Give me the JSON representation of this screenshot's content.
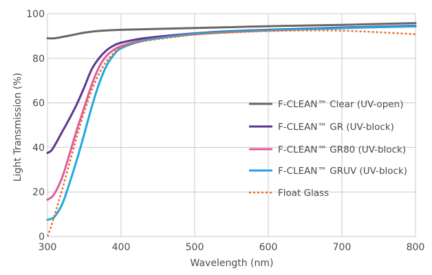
{
  "chart_data": {
    "type": "line",
    "title": "",
    "xlabel": "Wavelength (nm)",
    "ylabel": "Light Transmission (%)",
    "xlim": [
      300,
      800
    ],
    "ylim": [
      0,
      100
    ],
    "xticks": [
      300,
      400,
      500,
      600,
      700,
      800
    ],
    "yticks": [
      0,
      20,
      40,
      60,
      80,
      100
    ],
    "grid": true,
    "legend_position": "right",
    "series": [
      {
        "name": "F-CLEAN™ Clear (UV-open)",
        "color": "#666666",
        "dash": "solid",
        "points": [
          [
            300,
            89
          ],
          [
            310,
            89
          ],
          [
            330,
            90.2
          ],
          [
            350,
            91.5
          ],
          [
            370,
            92.3
          ],
          [
            400,
            92.8
          ],
          [
            450,
            93.2
          ],
          [
            500,
            93.6
          ],
          [
            550,
            94
          ],
          [
            600,
            94.4
          ],
          [
            650,
            94.7
          ],
          [
            700,
            95
          ],
          [
            750,
            95.4
          ],
          [
            800,
            95.8
          ]
        ]
      },
      {
        "name": "F-CLEAN™ GR (UV-block)",
        "color": "#5b3690",
        "dash": "solid",
        "points": [
          [
            300,
            37.5
          ],
          [
            305,
            38.5
          ],
          [
            310,
            41
          ],
          [
            320,
            47
          ],
          [
            330,
            53
          ],
          [
            340,
            59.5
          ],
          [
            350,
            67
          ],
          [
            360,
            75
          ],
          [
            370,
            80
          ],
          [
            380,
            83.5
          ],
          [
            390,
            85.7
          ],
          [
            400,
            87
          ],
          [
            425,
            88.7
          ],
          [
            450,
            89.7
          ],
          [
            500,
            91.2
          ],
          [
            550,
            92.2
          ],
          [
            600,
            92.8
          ],
          [
            650,
            93.3
          ],
          [
            700,
            93.8
          ],
          [
            750,
            94.2
          ],
          [
            800,
            94.6
          ]
        ]
      },
      {
        "name": "F-CLEAN™ GR80 (UV-block)",
        "color": "#e05aa0",
        "dash": "solid",
        "points": [
          [
            300,
            16.5
          ],
          [
            305,
            17.5
          ],
          [
            310,
            19.5
          ],
          [
            320,
            26.5
          ],
          [
            330,
            37
          ],
          [
            340,
            48
          ],
          [
            350,
            58
          ],
          [
            360,
            68
          ],
          [
            370,
            76
          ],
          [
            380,
            81
          ],
          [
            390,
            83.8
          ],
          [
            400,
            85.5
          ],
          [
            425,
            87.8
          ],
          [
            450,
            89
          ],
          [
            500,
            90.8
          ],
          [
            550,
            91.8
          ],
          [
            600,
            92.5
          ],
          [
            650,
            93
          ],
          [
            700,
            93.5
          ],
          [
            750,
            94
          ],
          [
            800,
            94.3
          ]
        ]
      },
      {
        "name": "F-CLEAN™ GRUV (UV-block)",
        "color": "#1ea7e0",
        "dash": "solid",
        "points": [
          [
            300,
            7.5
          ],
          [
            305,
            8
          ],
          [
            310,
            9
          ],
          [
            320,
            14.5
          ],
          [
            330,
            24
          ],
          [
            340,
            34.5
          ],
          [
            350,
            46
          ],
          [
            360,
            58
          ],
          [
            370,
            68.5
          ],
          [
            380,
            76.5
          ],
          [
            390,
            81.5
          ],
          [
            400,
            84.5
          ],
          [
            425,
            87.5
          ],
          [
            450,
            89
          ],
          [
            500,
            91
          ],
          [
            550,
            92
          ],
          [
            600,
            92.6
          ],
          [
            650,
            93.1
          ],
          [
            700,
            93.6
          ],
          [
            750,
            94
          ],
          [
            800,
            94.4
          ]
        ]
      },
      {
        "name": "Float Glass",
        "color": "#e8702a",
        "dash": "dotted",
        "points": [
          [
            300,
            0
          ],
          [
            305,
            4.5
          ],
          [
            310,
            10
          ],
          [
            320,
            21
          ],
          [
            330,
            33
          ],
          [
            340,
            45
          ],
          [
            350,
            56
          ],
          [
            360,
            65.5
          ],
          [
            370,
            73
          ],
          [
            380,
            78.5
          ],
          [
            390,
            82.3
          ],
          [
            400,
            85
          ],
          [
            425,
            87.3
          ],
          [
            450,
            88.6
          ],
          [
            500,
            90.6
          ],
          [
            550,
            91.6
          ],
          [
            600,
            92.2
          ],
          [
            650,
            92.5
          ],
          [
            700,
            92.4
          ],
          [
            750,
            91.7
          ],
          [
            800,
            90.8
          ]
        ]
      }
    ]
  }
}
